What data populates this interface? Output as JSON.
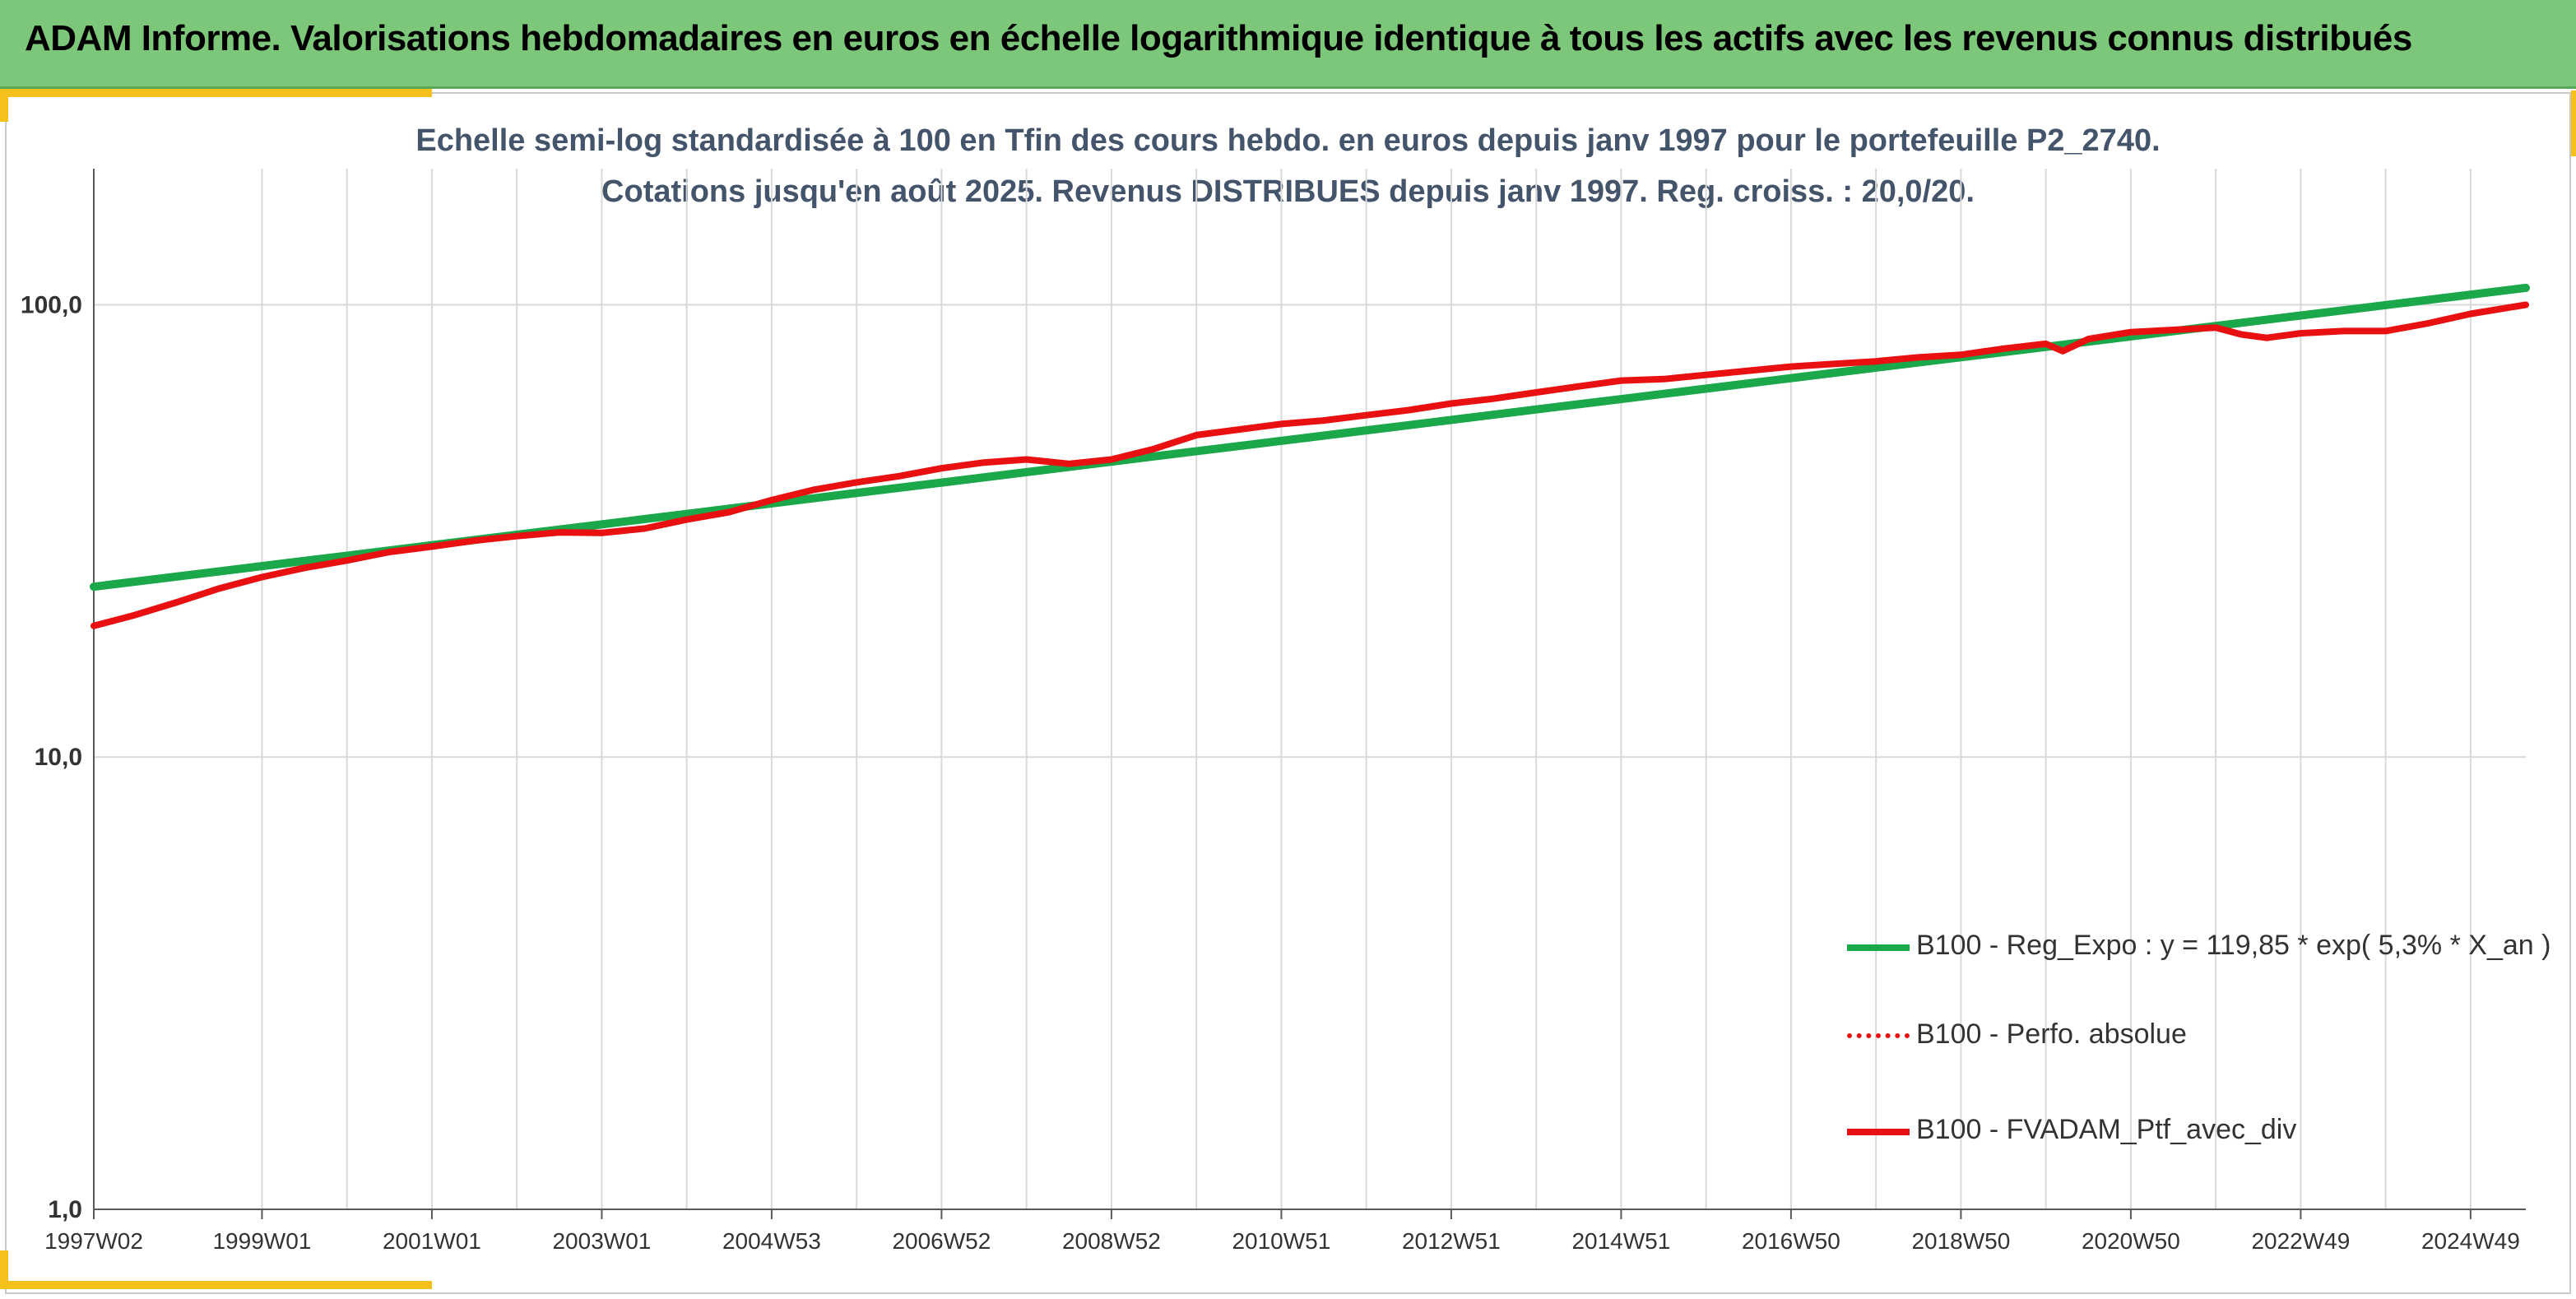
{
  "header": {
    "title": "ADAM Informe. Valorisations hebdomadaires en euros en échelle logarithmique identique à tous les actifs avec les revenus connus distribués"
  },
  "chart_data": {
    "type": "line",
    "title_line1": "Echelle semi-log standardisée à 100 en Tfin des cours hebdo. en euros depuis janv 1997 pour le portefeuille P2_2740.",
    "title_line2": "Cotations jusqu'en août 2025. Revenus DISTRIBUES depuis janv 1997. Reg. croiss. : 20,0/20.",
    "y_scale": "log",
    "ylim": [
      1,
      200
    ],
    "y_ticks": [
      {
        "value": 1,
        "label": "1,0"
      },
      {
        "value": 10,
        "label": "10,0"
      },
      {
        "value": 100,
        "label": "100,0"
      }
    ],
    "x_range": [
      1997.02,
      2025.65
    ],
    "x_ticks": [
      {
        "value": 1997.02,
        "label": "1997W02"
      },
      {
        "value": 1999.0,
        "label": "1999W01"
      },
      {
        "value": 2001.0,
        "label": "2001W01"
      },
      {
        "value": 2003.0,
        "label": "2003W01"
      },
      {
        "value": 2005.0,
        "label": "2004W53"
      },
      {
        "value": 2007.0,
        "label": "2006W52"
      },
      {
        "value": 2009.0,
        "label": "2008W52"
      },
      {
        "value": 2011.0,
        "label": "2010W51"
      },
      {
        "value": 2013.0,
        "label": "2012W51"
      },
      {
        "value": 2015.0,
        "label": "2014W51"
      },
      {
        "value": 2017.0,
        "label": "2016W50"
      },
      {
        "value": 2019.0,
        "label": "2018W50"
      },
      {
        "value": 2021.0,
        "label": "2020W50"
      },
      {
        "value": 2023.0,
        "label": "2022W49"
      },
      {
        "value": 2025.0,
        "label": "2024W49"
      }
    ],
    "grid": true,
    "legend_position": "bottom-right",
    "series": [
      {
        "name": "B100 - Reg_Expo : y = 119,85 * exp( 5,3% *  X_an )",
        "color": "#1aa84a",
        "style": "solid",
        "x": [
          1997.02,
          2025.65
        ],
        "y": [
          23.8,
          109
        ]
      },
      {
        "name": "B100 - Perfo. absolue",
        "color": "#e81010",
        "style": "dotted",
        "x": [],
        "y": []
      },
      {
        "name": "B100 - FVADAM_Ptf_avec_div",
        "color": "#e81010",
        "style": "solid",
        "x": [
          1997.02,
          1997.5,
          1998.0,
          1998.5,
          1999.0,
          1999.5,
          2000.0,
          2000.5,
          2001.0,
          2001.5,
          2002.0,
          2002.5,
          2003.0,
          2003.5,
          2004.0,
          2004.5,
          2005.0,
          2005.5,
          2006.0,
          2006.5,
          2007.0,
          2007.5,
          2008.0,
          2008.5,
          2009.0,
          2009.5,
          2010.0,
          2010.5,
          2011.0,
          2011.5,
          2012.0,
          2012.5,
          2013.0,
          2013.5,
          2014.0,
          2014.5,
          2015.0,
          2015.5,
          2016.0,
          2016.5,
          2017.0,
          2017.5,
          2018.0,
          2018.5,
          2019.0,
          2019.5,
          2020.0,
          2020.2,
          2020.5,
          2021.0,
          2021.5,
          2022.0,
          2022.3,
          2022.6,
          2023.0,
          2023.5,
          2024.0,
          2024.5,
          2025.0,
          2025.65
        ],
        "y": [
          19.5,
          20.6,
          22.0,
          23.6,
          25.0,
          26.2,
          27.2,
          28.4,
          29.2,
          30.1,
          30.8,
          31.4,
          31.3,
          32.0,
          33.5,
          34.8,
          37.0,
          39.0,
          40.5,
          41.8,
          43.5,
          44.8,
          45.5,
          44.5,
          45.5,
          48.0,
          51.5,
          53.0,
          54.5,
          55.5,
          57.0,
          58.5,
          60.5,
          62.0,
          64.0,
          66.0,
          68.0,
          68.5,
          70.0,
          71.5,
          73.0,
          74.0,
          75.0,
          76.5,
          77.5,
          80.0,
          82.0,
          79.0,
          84.0,
          87.0,
          88.0,
          89.0,
          86.0,
          84.5,
          86.5,
          87.5,
          87.5,
          91.0,
          95.5,
          100.0
        ]
      }
    ]
  }
}
